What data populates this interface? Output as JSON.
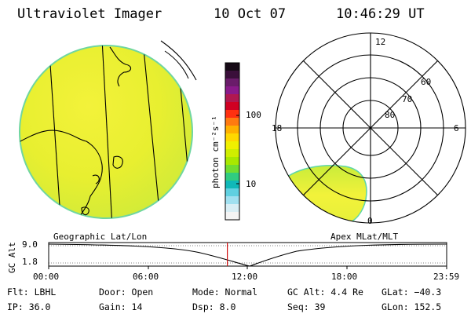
{
  "header": {
    "title": "Ultraviolet Imager",
    "date": "10 Oct 07",
    "time": "10:46:29 UT"
  },
  "colorbar": {
    "unit_label": "photon cm⁻²s⁻¹",
    "tick_100": "100",
    "tick_10": "10",
    "colors_top_to_bottom": [
      "#160a16",
      "#3a0f3a",
      "#6a1c6a",
      "#8a1a8a",
      "#b01850",
      "#d00022",
      "#ff3010",
      "#ff7a10",
      "#ffb000",
      "#ffd800",
      "#f0f000",
      "#cfee00",
      "#a8e800",
      "#70dd30",
      "#30cc80",
      "#10b8b8",
      "#60d0e0",
      "#a0e0f0",
      "#d8eef5",
      "#f4f4f4"
    ]
  },
  "polar": {
    "label_12": "12",
    "label_6": "6",
    "label_18": "18",
    "label_0": "0",
    "label_60": "60",
    "label_70": "70",
    "label_80": "80"
  },
  "timeline": {
    "left_label": "Geographic Lat/Lon",
    "right_label": "Apex MLat/MLT",
    "axis_title": "GC Alt",
    "y_top": "9.0",
    "y_bottom": "1.8",
    "x_ticks": [
      "00:00",
      "06:00",
      "12:00",
      "18:00",
      "23:59"
    ],
    "current_time_fraction": 0.4489
  },
  "status": {
    "flt": "Flt: LBHL",
    "ip": "IP: 36.0",
    "door": "Door: Open",
    "gain": "Gain: 14",
    "mode": "Mode: Normal",
    "dsp": "Dsp:    8.0",
    "gcalt": "GC Alt: 4.4 Re",
    "seq": "Seq: 39",
    "glat": "GLat: −40.3",
    "glon": "GLon: 152.5"
  }
}
